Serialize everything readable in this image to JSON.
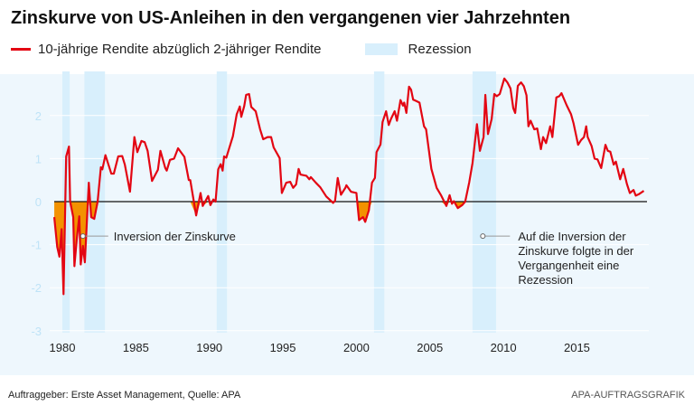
{
  "header": {
    "title": "Zinskurve von US-Anleihen in den vergangenen vier Jahrzehnten"
  },
  "legend": {
    "series_label": "10-jährige Rendite abzüglich 2-jähriger Rendite",
    "recession_label": "Rezession"
  },
  "footer": {
    "source": "Auftraggeber: Erste Asset Management, Quelle: APA",
    "credit": "APA-AUFTRAGSGRAFIK"
  },
  "colors": {
    "line": "#e30613",
    "inversion_fill": "#f39200",
    "recession": "#d8effc",
    "background": "#eef7fd",
    "tick_labels_y": "#bfe3f7"
  },
  "chart_data": {
    "type": "line",
    "xlim": [
      1979.4,
      2019.6
    ],
    "ylim": [
      -3,
      2.9
    ],
    "x_ticks": [
      1980,
      1985,
      1990,
      1995,
      2000,
      2005,
      2010,
      2015
    ],
    "y_ticks": [
      2,
      1,
      0,
      -1,
      -2,
      -3
    ],
    "grid": true,
    "legend_placement": "top",
    "recessions": [
      [
        1980.0,
        1980.5
      ],
      [
        1981.5,
        1982.9
      ],
      [
        1990.5,
        1991.2
      ],
      [
        2001.2,
        2001.9
      ],
      [
        2007.9,
        2009.5
      ]
    ],
    "annotations": [
      {
        "text": "Inversion der Zinskurve",
        "x": 1981.4,
        "y": -0.8
      },
      {
        "text": "Auf die Inversion der Zinskurve folgte in der Vergangenheit eine Rezession",
        "lines": [
          "Auf die Inversion der",
          "Zinskurve folgte in der",
          "Vergangenheit eine",
          "Rezession"
        ],
        "x": 2008.6,
        "y": -0.8
      }
    ],
    "series": [
      {
        "x": [
          1979.45,
          1979.65,
          1979.8,
          1979.95,
          1980.08,
          1980.26,
          1980.45,
          1980.53,
          1980.74,
          1980.82,
          1980.98,
          1981.15,
          1981.25,
          1981.4,
          1981.53,
          1981.8,
          1981.96,
          1982.17,
          1982.4,
          1982.62,
          1982.72,
          1982.93,
          1983.33,
          1983.5,
          1983.8,
          1984.07,
          1984.25,
          1984.6,
          1984.9,
          1985.1,
          1985.38,
          1985.6,
          1985.8,
          1986.1,
          1986.5,
          1986.67,
          1987.0,
          1987.1,
          1987.32,
          1987.6,
          1987.87,
          1988.3,
          1988.6,
          1988.7,
          1989.1,
          1989.4,
          1989.55,
          1989.92,
          1990.07,
          1990.27,
          1990.42,
          1990.6,
          1990.77,
          1990.9,
          1991.0,
          1991.15,
          1991.6,
          1991.86,
          1992.07,
          1992.17,
          1992.37,
          1992.5,
          1992.7,
          1992.85,
          1993.15,
          1993.45,
          1993.66,
          1993.96,
          1994.2,
          1994.37,
          1994.78,
          1994.93,
          1995.23,
          1995.5,
          1995.7,
          1995.9,
          1996.07,
          1996.2,
          1996.6,
          1996.8,
          1996.9,
          1997.24,
          1997.55,
          1997.95,
          1998.42,
          1998.55,
          1998.73,
          1998.95,
          1999.25,
          1999.32,
          1999.63,
          2000.0,
          2000.18,
          2000.45,
          2000.6,
          2000.85,
          2001.06,
          2001.26,
          2001.37,
          2001.64,
          2001.78,
          2002.02,
          2002.2,
          2002.35,
          2002.6,
          2002.76,
          2003.0,
          2003.17,
          2003.25,
          2003.4,
          2003.58,
          2003.72,
          2003.86,
          2004.06,
          2004.29,
          2004.6,
          2004.74,
          2005.1,
          2005.46,
          2005.77,
          2006.12,
          2006.34,
          2006.5,
          2006.63,
          2006.9,
          2007.2,
          2007.4,
          2007.67,
          2007.9,
          2008.2,
          2008.4,
          2008.65,
          2008.77,
          2008.95,
          2009.2,
          2009.38,
          2009.55,
          2009.75,
          2010.06,
          2010.27,
          2010.48,
          2010.67,
          2010.8,
          2010.98,
          2011.2,
          2011.39,
          2011.57,
          2011.7,
          2011.85,
          2012.1,
          2012.3,
          2012.55,
          2012.7,
          2012.9,
          2013.18,
          2013.33,
          2013.6,
          2013.8,
          2013.95,
          2014.3,
          2014.6,
          2014.77,
          2015.08,
          2015.28,
          2015.48,
          2015.63,
          2015.73,
          2016.0,
          2016.2,
          2016.4,
          2016.65,
          2016.94,
          2017.1,
          2017.27,
          2017.5,
          2017.65,
          2017.94,
          2018.15,
          2018.4,
          2018.6,
          2018.85,
          2019.0,
          2019.2,
          2019.55
        ],
        "values": [
          -0.36,
          -1.05,
          -1.28,
          -0.64,
          -2.15,
          1.05,
          1.28,
          0,
          -0.36,
          -1.5,
          -0.88,
          -0.34,
          -1.46,
          -1.03,
          -1.41,
          0.44,
          -0.36,
          -0.4,
          0,
          0.8,
          0.75,
          1.08,
          0.65,
          0.65,
          1.05,
          1.06,
          0.86,
          0.23,
          1.5,
          1.15,
          1.41,
          1.38,
          1.18,
          0.48,
          0.74,
          1.18,
          0.78,
          0.72,
          0.97,
          1.0,
          1.24,
          1.04,
          0.5,
          0.5,
          -0.32,
          0.2,
          -0.1,
          0.13,
          -0.08,
          0.05,
          0,
          0.75,
          0.87,
          0.72,
          1.05,
          1.02,
          1.52,
          2.03,
          2.21,
          1.97,
          2.22,
          2.48,
          2.5,
          2.2,
          2.1,
          1.68,
          1.45,
          1.5,
          1.5,
          1.26,
          1.01,
          0.2,
          0.44,
          0.46,
          0.32,
          0.4,
          0.76,
          0.63,
          0.6,
          0.52,
          0.57,
          0.44,
          0.33,
          0.12,
          -0.03,
          0.02,
          0.55,
          0.16,
          0.32,
          0.38,
          0.23,
          0.2,
          -0.43,
          -0.36,
          -0.47,
          -0.2,
          0.44,
          0.55,
          1.15,
          1.33,
          1.85,
          2.1,
          1.78,
          1.92,
          2.1,
          1.88,
          2.36,
          2.23,
          2.3,
          2.06,
          2.67,
          2.6,
          2.37,
          2.34,
          2.3,
          1.75,
          1.68,
          0.76,
          0.32,
          0.14,
          -0.1,
          0.15,
          -0.05,
          0.01,
          -0.15,
          -0.08,
          0,
          0.44,
          0.9,
          1.8,
          1.18,
          1.5,
          2.48,
          1.57,
          1.92,
          2.5,
          2.45,
          2.5,
          2.86,
          2.77,
          2.63,
          2.17,
          2.06,
          2.69,
          2.77,
          2.68,
          2.47,
          1.75,
          1.88,
          1.68,
          1.7,
          1.22,
          1.5,
          1.36,
          1.75,
          1.5,
          2.42,
          2.45,
          2.52,
          2.24,
          2.03,
          1.82,
          1.32,
          1.43,
          1.5,
          1.75,
          1.5,
          1.29,
          1.0,
          0.98,
          0.78,
          1.32,
          1.18,
          1.16,
          0.86,
          0.93,
          0.52,
          0.76,
          0.41,
          0.2,
          0.27,
          0.14,
          0.17,
          0.25
        ]
      }
    ]
  }
}
